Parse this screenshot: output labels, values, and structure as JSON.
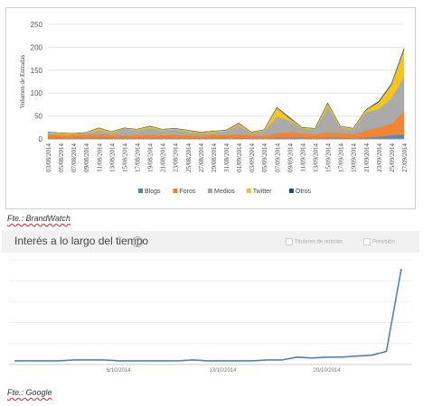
{
  "chart_data": [
    {
      "type": "area",
      "stacked": true,
      "ylabel": "Volumen de Entradas",
      "ylim": [
        0,
        250
      ],
      "yticks": [
        0,
        50,
        100,
        150,
        200,
        250
      ],
      "grid": "horizontal",
      "legend_position": "bottom",
      "x": [
        "03/08/2014",
        "05/08/2014",
        "07/08/2014",
        "09/08/2014",
        "11/08/2014",
        "13/08/2014",
        "15/08/2014",
        "17/08/2014",
        "19/08/2014",
        "21/08/2014",
        "23/08/2014",
        "25/08/2014",
        "27/08/2014",
        "29/08/2014",
        "31/08/2014",
        "01/09/2014",
        "03/09/2014",
        "05/09/2014",
        "07/09/2014",
        "09/09/2014",
        "11/09/2014",
        "13/09/2014",
        "15/09/2014",
        "17/09/2014",
        "19/09/2014",
        "21/09/2014",
        "23/09/2014",
        "25/09/2014",
        "27/09/2014"
      ],
      "xticks": [
        "03/08/2014",
        "05/08/2014",
        "07/08/2014",
        "09/08/2014",
        "11/08/2014",
        "13/08/2014",
        "15/08/2014",
        "17/08/2014",
        "19/08/2014",
        "21/08/2014",
        "23/08/2014",
        "25/08/2014",
        "27/08/2014",
        "29/08/2014",
        "31/08/2014",
        "01/09/2014",
        "03/09/2014",
        "05/09/2014",
        "07/09/2014",
        "09/09/2014",
        "11/09/2014",
        "13/09/2014",
        "15/09/2014",
        "17/09/2014",
        "19/09/2014",
        "21/09/2014",
        "23/09/2014",
        "25/09/2014",
        "27/09/2014"
      ],
      "series": [
        {
          "name": "Blogs",
          "color": "#4f81bd",
          "values": [
            2,
            2,
            2,
            2,
            3,
            2,
            2,
            2,
            2,
            2,
            2,
            2,
            2,
            2,
            2,
            2,
            2,
            2,
            3,
            3,
            3,
            2,
            3,
            3,
            2,
            3,
            5,
            8,
            10
          ]
        },
        {
          "name": "Foros",
          "color": "#f07f2a",
          "values": [
            8,
            6,
            6,
            7,
            8,
            6,
            5,
            6,
            7,
            6,
            7,
            6,
            5,
            6,
            7,
            8,
            6,
            5,
            10,
            12,
            10,
            8,
            12,
            10,
            8,
            15,
            20,
            25,
            50
          ]
        },
        {
          "name": "Medios",
          "color": "#a6a6a6",
          "values": [
            2,
            2,
            2,
            3,
            8,
            5,
            15,
            10,
            15,
            10,
            12,
            8,
            6,
            6,
            8,
            20,
            5,
            10,
            35,
            25,
            10,
            10,
            55,
            12,
            10,
            40,
            40,
            55,
            75
          ]
        },
        {
          "name": "Twitter",
          "color": "#f2c314",
          "values": [
            3,
            3,
            2,
            2,
            5,
            3,
            2,
            3,
            4,
            3,
            2,
            3,
            2,
            3,
            2,
            4,
            2,
            3,
            20,
            5,
            2,
            3,
            8,
            3,
            3,
            5,
            15,
            30,
            60
          ]
        },
        {
          "name": "Otros",
          "color": "#1f497d",
          "values": [
            0,
            0,
            0,
            0,
            0,
            0,
            0,
            0,
            0,
            0,
            0,
            0,
            0,
            0,
            0,
            1,
            0,
            0,
            1,
            2,
            0,
            0,
            1,
            0,
            0,
            1,
            2,
            2,
            3
          ]
        }
      ]
    },
    {
      "type": "line",
      "title": "Interés a lo largo del tiempo",
      "legend": [
        "Titulares de noticias",
        "Previsión"
      ],
      "xticks": [
        "6/10/2014",
        "13/10/2014",
        "20/10/2014"
      ],
      "grid": "horizontal",
      "color": "#4f81bd",
      "x": [
        "29/9",
        "30/9",
        "1/10",
        "2/10",
        "3/10",
        "4/10",
        "5/10",
        "6/10",
        "7/10",
        "8/10",
        "9/10",
        "10/10",
        "11/10",
        "12/10",
        "13/10",
        "14/10",
        "15/10",
        "16/10",
        "17/10",
        "18/10",
        "19/10",
        "20/10",
        "21/10",
        "22/10",
        "23/10",
        "24/10",
        "25/10"
      ],
      "values": [
        2,
        2,
        2,
        2,
        3,
        3,
        3,
        2,
        2,
        2,
        2,
        2,
        3,
        2,
        2,
        2,
        2,
        3,
        3,
        6,
        5,
        6,
        6,
        7,
        8,
        12,
        100
      ]
    }
  ],
  "sources": {
    "source1": "Fte.: BrandWatch",
    "source2": "Fte.: Google"
  }
}
